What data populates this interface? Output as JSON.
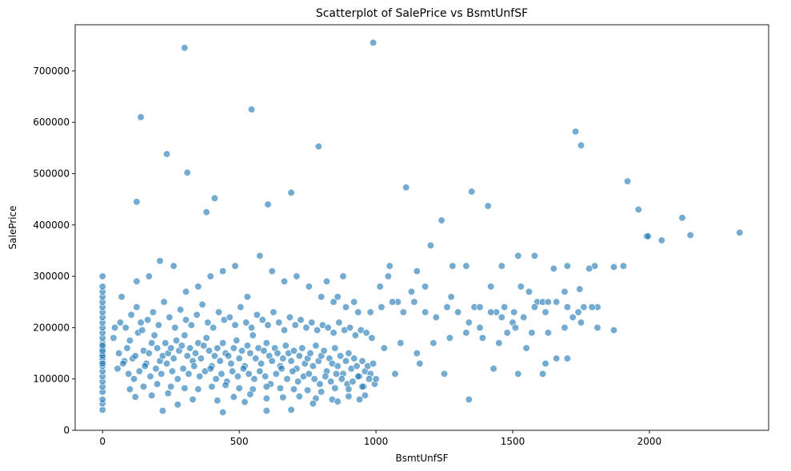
{
  "chart_data": {
    "type": "scatter",
    "title": "Scatterplot of SalePrice vs BsmtUnfSF",
    "xlabel": "BsmtUnfSF",
    "ylabel": "SalePrice",
    "xlim": [
      -100,
      2436
    ],
    "ylim": [
      0,
      790000
    ],
    "x_ticks": [
      0,
      500,
      1000,
      1500,
      2000
    ],
    "x_tick_labels": [
      "0",
      "500",
      "1000",
      "1500",
      "2000"
    ],
    "y_ticks": [
      0,
      100000,
      200000,
      300000,
      400000,
      500000,
      600000,
      700000
    ],
    "y_tick_labels": [
      "0",
      "100000",
      "200000",
      "300000",
      "400000",
      "500000",
      "600000",
      "700000"
    ],
    "grid": false,
    "legend": "none",
    "color": "#1f77b4",
    "series": [
      {
        "x": [
          0,
          0,
          0,
          0,
          0,
          0,
          0,
          0,
          0,
          0,
          0,
          0,
          0,
          0,
          0,
          0,
          0,
          0,
          0,
          0,
          0,
          0,
          0,
          0,
          0,
          0,
          0,
          0,
          0,
          0,
          990,
          300,
          545,
          140,
          1730,
          1750,
          235,
          310,
          790,
          1110,
          1350,
          1920,
          125,
          1410,
          690,
          410,
          605,
          2120,
          2330,
          1240,
          380,
          1520,
          1050,
          1200,
          1650,
          1800,
          880,
          920,
          1580,
          1905,
          2045,
          1275,
          1960,
          1990,
          1700,
          1420,
          1330,
          1590,
          1690,
          1780,
          1745,
          1870,
          1995,
          2150,
          1460,
          1530,
          1610,
          1505,
          1150,
          1045,
          1180,
          1015,
          820,
          860,
          1080,
          1130,
          1280,
          1360,
          1380,
          1440,
          1470,
          1560,
          1630,
          1720,
          1760,
          1810,
          1660,
          1620,
          1550,
          1480,
          40,
          60,
          80,
          90,
          100,
          110,
          120,
          130,
          140,
          150,
          160,
          170,
          180,
          190,
          200,
          210,
          220,
          230,
          240,
          250,
          260,
          270,
          280,
          290,
          300,
          310,
          320,
          330,
          340,
          350,
          360,
          370,
          380,
          390,
          400,
          410,
          420,
          430,
          440,
          450,
          460,
          470,
          480,
          490,
          500,
          510,
          520,
          530,
          540,
          550,
          560,
          570,
          580,
          590,
          600,
          610,
          620,
          630,
          640,
          650,
          660,
          670,
          680,
          690,
          700,
          710,
          720,
          730,
          740,
          750,
          760,
          770,
          780,
          790,
          800,
          810,
          820,
          830,
          840,
          850,
          860,
          870,
          880,
          890,
          900,
          910,
          920,
          930,
          940,
          950,
          960,
          970,
          980,
          990,
          55,
          75,
          95,
          115,
          135,
          155,
          175,
          195,
          215,
          235,
          255,
          275,
          295,
          315,
          335,
          355,
          375,
          395,
          415,
          435,
          455,
          475,
          495,
          515,
          535,
          555,
          575,
          595,
          615,
          635,
          655,
          675,
          695,
          715,
          735,
          755,
          775,
          795,
          815,
          835,
          855,
          875,
          895,
          915,
          935,
          955,
          975,
          995,
          65,
          85,
          105,
          125,
          145,
          165,
          185,
          205,
          225,
          245,
          265,
          285,
          305,
          325,
          345,
          365,
          385,
          405,
          425,
          445,
          465,
          485,
          505,
          525,
          545,
          565,
          585,
          605,
          625,
          645,
          665,
          685,
          705,
          725,
          745,
          765,
          785,
          805,
          825,
          845,
          865,
          885,
          905,
          925,
          945,
          965,
          985,
          45,
          70,
          125,
          170,
          210,
          260,
          305,
          350,
          395,
          440,
          485,
          530,
          575,
          620,
          665,
          710,
          755,
          800,
          845,
          890,
          935,
          980,
          1020,
          1060,
          1100,
          1140,
          1180,
          1220,
          1260,
          1300,
          1340,
          1380,
          1420,
          1460,
          1500,
          1540,
          1580,
          1620,
          1660,
          1700,
          1740,
          1790,
          1030,
          1090,
          1150,
          1210,
          1270,
          1330,
          1390,
          1450,
          1510,
          1570,
          1630,
          1690,
          1750,
          1810,
          1870,
          100,
          150,
          200,
          250,
          300,
          350,
          400,
          450,
          500,
          550,
          600,
          650,
          700,
          750,
          800,
          850,
          900,
          950,
          120,
          180,
          240,
          330,
          420,
          480,
          540,
          600,
          660,
          720,
          780,
          840,
          900,
          960,
          220,
          275,
          440,
          520,
          600,
          690,
          770,
          860,
          940,
          1000,
          1070,
          1160,
          1250,
          1340,
          1430,
          1520,
          1610,
          1700
        ],
        "y": [
          40000,
          52000,
          60000,
          75000,
          85000,
          95000,
          105000,
          115000,
          125000,
          135000,
          140000,
          150000,
          160000,
          170000,
          180000,
          190000,
          200000,
          210000,
          220000,
          230000,
          240000,
          250000,
          260000,
          270000,
          280000,
          300000,
          145000,
          155000,
          165000,
          130000,
          755000,
          745000,
          625000,
          610000,
          582000,
          555000,
          538000,
          502000,
          553000,
          473000,
          465000,
          485000,
          445000,
          437000,
          463000,
          452000,
          440000,
          414000,
          385000,
          409000,
          425000,
          340000,
          320000,
          360000,
          315000,
          320000,
          300000,
          250000,
          340000,
          320000,
          370000,
          260000,
          430000,
          378000,
          320000,
          280000,
          320000,
          250000,
          270000,
          315000,
          275000,
          318000,
          378000,
          380000,
          320000,
          280000,
          250000,
          230000,
          310000,
          300000,
          280000,
          280000,
          290000,
          260000,
          250000,
          270000,
          320000,
          240000,
          200000,
          230000,
          240000,
          270000,
          250000,
          220000,
          240000,
          240000,
          140000,
          130000,
          160000,
          190000,
          180000,
          150000,
          135000,
          160000,
          175000,
          140000,
          145000,
          190000,
          210000,
          155000,
          130000,
          150000,
          170000,
          185000,
          160000,
          135000,
          145000,
          170000,
          150000,
          160000,
          140000,
          175000,
          155000,
          165000,
          185000,
          145000,
          160000,
          135000,
          150000,
          170000,
          140000,
          165000,
          180000,
          155000,
          125000,
          145000,
          160000,
          135000,
          170000,
          150000,
          145000,
          130000,
          160000,
          175000,
          140000,
          155000,
          125000,
          165000,
          150000,
          185000,
          140000,
          160000,
          130000,
          155000,
          170000,
          145000,
          135000,
          160000,
          150000,
          125000,
          140000,
          165000,
          150000,
          135000,
          155000,
          120000,
          145000,
          160000,
          130000,
          140000,
          150000,
          125000,
          165000,
          135000,
          145000,
          155000,
          115000,
          140000,
          130000,
          160000,
          125000,
          145000,
          110000,
          135000,
          150000,
          120000,
          140000,
          125000,
          105000,
          135000,
          115000,
          125000,
          110000,
          130000,
          120000,
          130000,
          110000,
          100000,
          115000,
          125000,
          105000,
          120000,
          110000,
          130000,
          115000,
          100000,
          120000,
          110000,
          125000,
          105000,
          115000,
          120000,
          100000,
          110000,
          95000,
          115000,
          105000,
          120000,
          110000,
          100000,
          115000,
          105000,
          90000,
          110000,
          120000,
          100000,
          115000,
          95000,
          105000,
          110000,
          100000,
          90000,
          105000,
          95000,
          110000,
          100000,
          90000,
          95000,
          105000,
          85000,
          100000,
          90000,
          210000,
          200000,
          225000,
          240000,
          195000,
          215000,
          230000,
          205000,
          250000,
          220000,
          200000,
          235000,
          215000,
          205000,
          225000,
          245000,
          210000,
          200000,
          230000,
          215000,
          220000,
          205000,
          240000,
          210000,
          200000,
          225000,
          215000,
          205000,
          230000,
          210000,
          195000,
          220000,
          205000,
          215000,
          200000,
          210000,
          195000,
          205000,
          200000,
          190000,
          210000,
          195000,
          200000,
          185000,
          195000,
          190000,
          180000,
          200000,
          260000,
          290000,
          300000,
          330000,
          320000,
          270000,
          280000,
          300000,
          310000,
          320000,
          260000,
          340000,
          310000,
          290000,
          300000,
          280000,
          260000,
          250000,
          240000,
          230000,
          230000,
          240000,
          250000,
          230000,
          250000,
          230000,
          220000,
          240000,
          230000,
          210000,
          240000,
          230000,
          220000,
          210000,
          220000,
          240000,
          230000,
          250000,
          240000,
          230000,
          240000,
          160000,
          170000,
          150000,
          170000,
          180000,
          190000,
          180000,
          170000,
          200000,
          190000,
          190000,
          200000,
          210000,
          200000,
          195000,
          80000,
          85000,
          90000,
          85000,
          82000,
          80000,
          85000,
          88000,
          82000,
          80000,
          85000,
          82000,
          80000,
          78000,
          75000,
          82000,
          80000,
          85000,
          65000,
          68000,
          72000,
          60000,
          58000,
          65000,
          70000,
          62000,
          64000,
          66000,
          62000,
          60000,
          66000,
          68000,
          38000,
          50000,
          35000,
          55000,
          38000,
          40000,
          52000,
          56000,
          60000,
          100000,
          110000,
          130000,
          110000,
          60000,
          120000,
          110000,
          110000,
          140000
        ]
      }
    ]
  }
}
